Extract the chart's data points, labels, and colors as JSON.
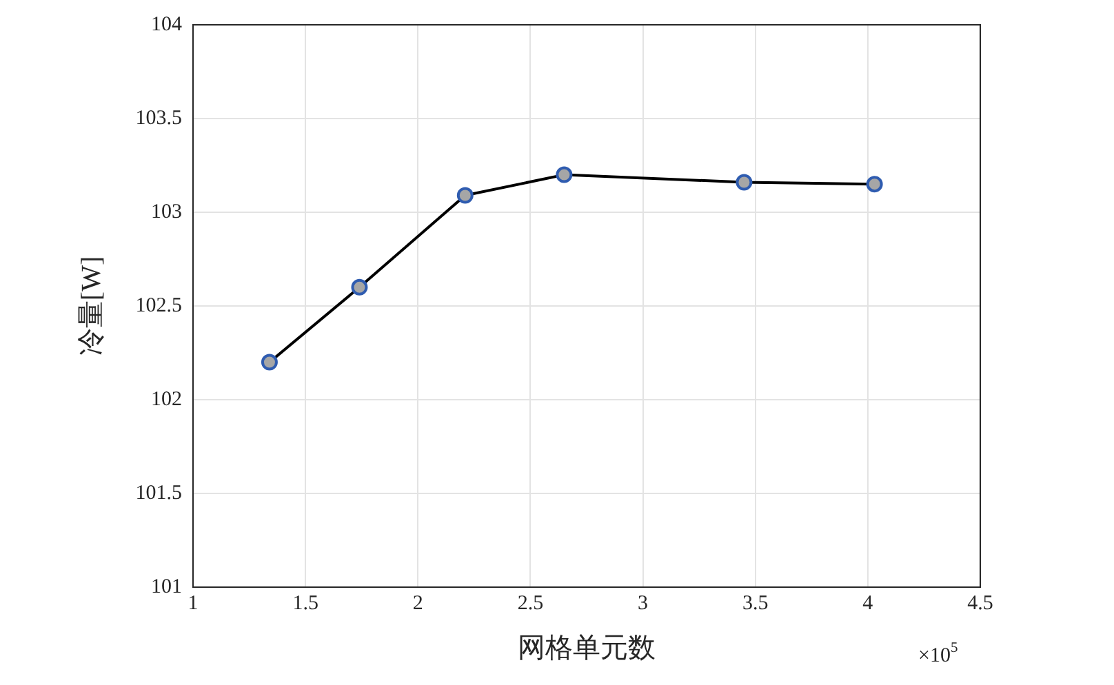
{
  "chart_data": {
    "type": "line",
    "xlabel": "网格单元数",
    "ylabel": "冷量[W]",
    "x": [
      1.34,
      1.74,
      2.21,
      2.65,
      3.45,
      4.03
    ],
    "series": [
      {
        "color": "#000000",
        "values": [
          102.2,
          102.6,
          103.09,
          103.2,
          103.16,
          103.15
        ]
      }
    ],
    "xlim": [
      1,
      4.5
    ],
    "xticks": [
      1,
      1.5,
      2,
      2.5,
      3,
      3.5,
      4,
      4.5
    ],
    "ylim": [
      101,
      104
    ],
    "yticks": [
      101,
      101.5,
      102,
      102.5,
      103,
      103.5,
      104
    ],
    "grid": true,
    "legend": false,
    "marker": "circle",
    "line_style": "solid",
    "annotations": [
      "×10$^{5}$"
    ]
  }
}
